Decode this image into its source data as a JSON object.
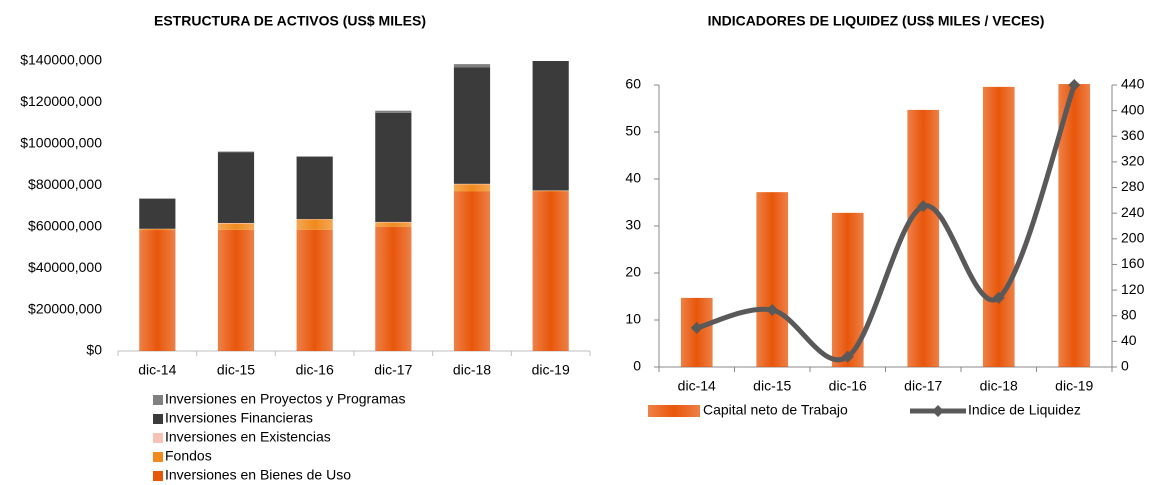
{
  "chart_data": [
    {
      "type": "bar",
      "stacked": true,
      "title": "ESTRUCTURA DE ACTIVOS (US$ MILES)",
      "categories": [
        "dic-14",
        "dic-15",
        "dic-16",
        "dic-17",
        "dic-18",
        "dic-19"
      ],
      "ylim": [
        0,
        140000000
      ],
      "yticks": [
        {
          "value": 0,
          "label": "$0"
        },
        {
          "value": 20000000,
          "label": "$20000,000"
        },
        {
          "value": 40000000,
          "label": "$40000,000"
        },
        {
          "value": 60000000,
          "label": "$60000,000"
        },
        {
          "value": 80000000,
          "label": "$80000,000"
        },
        {
          "value": 100000000,
          "label": "$100000,000"
        },
        {
          "value": 120000000,
          "label": "$120000,000"
        },
        {
          "value": 140000000,
          "label": "$140000,000"
        }
      ],
      "series": [
        {
          "name": "Inversiones en Bienes de Uso",
          "color": "#e8560a",
          "values": [
            58400000,
            58500000,
            58500000,
            60000000,
            77000000,
            77000000
          ]
        },
        {
          "name": "Fondos",
          "color": "#f08a1c",
          "values": [
            500000,
            3000000,
            5000000,
            2000000,
            3500000,
            300000
          ]
        },
        {
          "name": "Inversiones en Existencias",
          "color": "#f7c3b4",
          "values": [
            100000,
            300000,
            200000,
            300000,
            200000,
            200000
          ]
        },
        {
          "name": "Inversiones Financieras",
          "color": "#3b3b3b",
          "values": [
            14500000,
            34200000,
            30100000,
            52700000,
            56300000,
            62500000
          ]
        },
        {
          "name": "Inversiones en Proyectos y Programas",
          "color": "#808080",
          "values": [
            200000,
            300000,
            200000,
            1000000,
            1500000,
            0
          ]
        }
      ]
    },
    {
      "type": "bar",
      "title": "INDICADORES DE LIQUIDEZ (US$ MILES / VECES)",
      "categories": [
        "dic-14",
        "dic-15",
        "dic-16",
        "dic-17",
        "dic-18",
        "dic-19"
      ],
      "ylim": [
        0,
        60
      ],
      "yticks": [
        0,
        10,
        20,
        30,
        40,
        50,
        60
      ],
      "y2lim": [
        0,
        440
      ],
      "y2ticks": [
        0,
        40,
        80,
        120,
        160,
        200,
        240,
        280,
        320,
        360,
        400,
        440
      ],
      "series": [
        {
          "name": "Capital neto de Trabajo",
          "color": "#e8560a",
          "values": [
            14.7,
            37.2,
            32.8,
            54.7,
            59.6,
            60.2
          ]
        },
        {
          "name": "Indice de Liquidez",
          "type": "line",
          "axis": "y2",
          "color": "#595959",
          "values": [
            61,
            89,
            16,
            251,
            108,
            440
          ]
        }
      ]
    }
  ]
}
